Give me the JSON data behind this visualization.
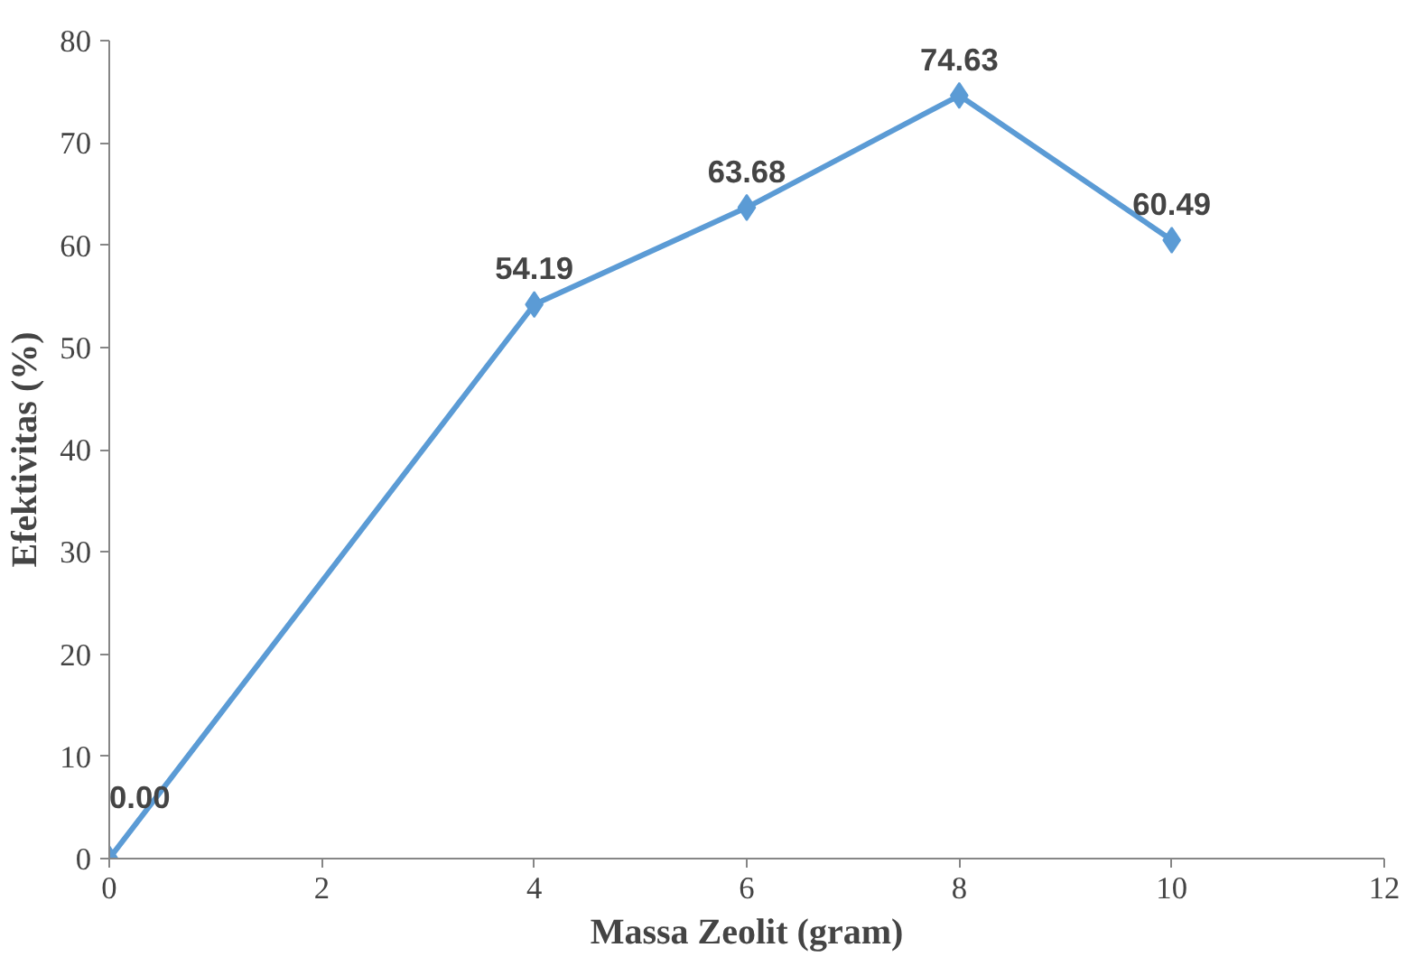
{
  "chart_data": {
    "type": "line",
    "xlabel": "Massa Zeolit (gram)",
    "ylabel": "Efektivitas (%)",
    "x": [
      0,
      4,
      6,
      8,
      10
    ],
    "series": [
      {
        "color": "#5b9bd5",
        "values": [
          0.0,
          54.19,
          63.68,
          74.63,
          60.49
        ],
        "value_labels": [
          "0.00",
          "54.19",
          "63.68",
          "74.63",
          "60.49"
        ]
      }
    ],
    "xlim": [
      0,
      12
    ],
    "ylim": [
      0,
      80
    ],
    "xticks": [
      0,
      2,
      4,
      6,
      8,
      10,
      12
    ],
    "yticks": [
      0,
      10,
      20,
      30,
      40,
      50,
      60,
      70,
      80
    ],
    "grid": false,
    "marker": "diamond",
    "line_style": "solid"
  }
}
